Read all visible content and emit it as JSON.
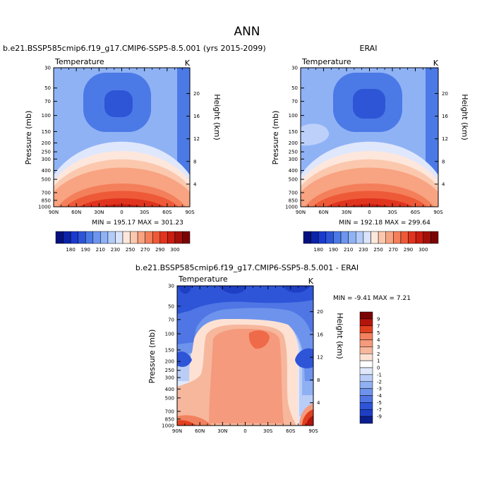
{
  "figure": {
    "title": "ANN"
  },
  "chart_data": [
    {
      "type": "contour",
      "title": "b.e21.BSSP585cmip6.f19_g17.CMIP6-SSP5-8.5.001 (yrs 2015-2099)",
      "variable": "Temperature",
      "units": "K",
      "ylabel": "Pressure (mb)",
      "y2label": "Height (km)",
      "xticks": [
        "90N",
        "60N",
        "30N",
        "0",
        "30S",
        "60S",
        "90S"
      ],
      "yticks": [
        "30",
        "50",
        "70",
        "100",
        "150",
        "200",
        "250",
        "300",
        "400",
        "500",
        "700",
        "850",
        "1000"
      ],
      "y2ticks": [
        "20",
        "16",
        "12",
        "8",
        "4"
      ],
      "stats": "MIN = 195.17  MAX = 301.23",
      "colorbar": {
        "labels": [
          "180",
          "190",
          "210",
          "230",
          "250",
          "270",
          "290",
          "300"
        ]
      }
    },
    {
      "type": "contour",
      "title": "ERAI",
      "variable": "Temperature",
      "units": "K",
      "ylabel": "Pressure (mb)",
      "y2label": "Height (km)",
      "xticks": [
        "90N",
        "60N",
        "30N",
        "0",
        "30S",
        "60S",
        "90S"
      ],
      "yticks": [
        "30",
        "50",
        "70",
        "100",
        "150",
        "200",
        "250",
        "300",
        "400",
        "500",
        "700",
        "850",
        "1000"
      ],
      "y2ticks": [
        "20",
        "16",
        "12",
        "8",
        "4"
      ],
      "stats": "MIN = 192.18  MAX = 299.64",
      "colorbar": {
        "labels": [
          "180",
          "190",
          "210",
          "230",
          "250",
          "270",
          "290",
          "300"
        ]
      }
    },
    {
      "type": "contour",
      "title": "b.e21.BSSP585cmip6.f19_g17.CMIP6-SSP5-8.5.001 - ERAI",
      "variable": "Temperature",
      "units": "K",
      "ylabel": "Pressure (mb)",
      "y2label": "Height (km)",
      "xticks": [
        "90N",
        "60N",
        "30N",
        "0",
        "30S",
        "60S",
        "90S"
      ],
      "yticks": [
        "30",
        "50",
        "70",
        "100",
        "150",
        "200",
        "250",
        "300",
        "400",
        "500",
        "700",
        "850",
        "1000"
      ],
      "y2ticks": [
        "20",
        "16",
        "12",
        "8",
        "4"
      ],
      "stats": "MIN = -9.41  MAX =  7.21",
      "colorbar": {
        "labels": [
          "9",
          "7",
          "5",
          "4",
          "3",
          "2",
          "1",
          "0",
          "-1",
          "-2",
          "-3",
          "-4",
          "-5",
          "-7",
          "-9"
        ]
      }
    }
  ]
}
